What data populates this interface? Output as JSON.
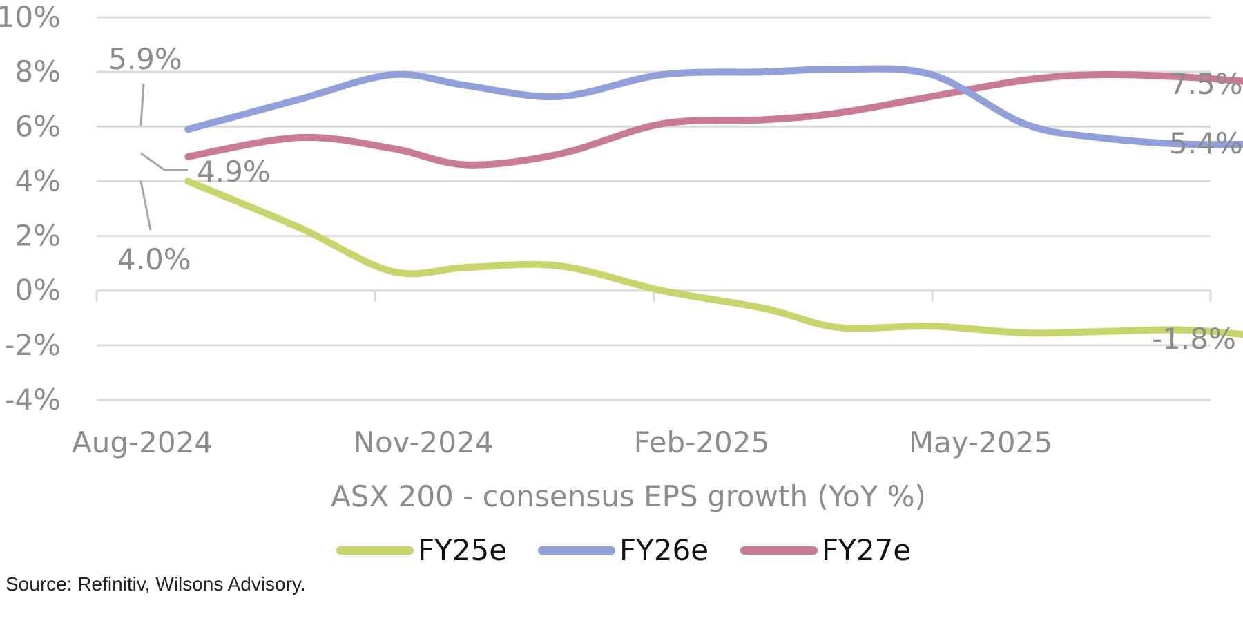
{
  "chart_data": {
    "type": "line",
    "xlabel": "ASX 200 - consensus EPS growth (YoY %)",
    "ylabel": "",
    "ylim": [
      -4,
      10
    ],
    "y_ticks": [
      "10%",
      "8%",
      "6%",
      "4%",
      "2%",
      "0%",
      "-2%",
      "-4%"
    ],
    "y_tick_values": [
      10,
      8,
      6,
      4,
      2,
      0,
      -2,
      -4
    ],
    "x_ticks": [
      "Aug-2024",
      "Nov-2024",
      "Feb-2025",
      "May-2025"
    ],
    "x_tick_months": [
      0,
      3,
      6,
      9
    ],
    "x": [
      0.5,
      1.7,
      2.7,
      3.5,
      4.5,
      5.6,
      6.7,
      7.5,
      8.5,
      9.5,
      10.3,
      11.3,
      12.4
    ],
    "grid": true,
    "legend_position": "bottom",
    "series": [
      {
        "name": "FY25e",
        "color": "#c9d46a",
        "values": [
          4.0,
          2.3,
          0.7,
          0.85,
          0.9,
          0.0,
          -0.65,
          -1.35,
          -1.3,
          -1.55,
          -1.5,
          -1.45,
          -1.8
        ]
      },
      {
        "name": "FY26e",
        "color": "#919fdb",
        "values": [
          5.9,
          7.0,
          7.9,
          7.5,
          7.1,
          7.9,
          8.0,
          8.1,
          7.9,
          6.1,
          5.6,
          5.35,
          5.4
        ]
      },
      {
        "name": "FY27e",
        "color": "#c97b93",
        "values": [
          4.9,
          5.6,
          5.2,
          4.6,
          5.0,
          6.1,
          6.25,
          6.5,
          7.1,
          7.7,
          7.9,
          7.8,
          7.5
        ]
      }
    ],
    "annotations": [
      {
        "series": 1,
        "point": 0,
        "text": "5.9%"
      },
      {
        "series": 2,
        "point": 0,
        "text": "4.9%"
      },
      {
        "series": 0,
        "point": 0,
        "text": "4.0%"
      },
      {
        "series": 2,
        "point": 12,
        "text": "7.5%"
      },
      {
        "series": 1,
        "point": 12,
        "text": "5.4%"
      },
      {
        "series": 0,
        "point": 12,
        "text": "-1.8%"
      }
    ]
  },
  "source": "Source: Refinitiv, Wilsons Advisory."
}
